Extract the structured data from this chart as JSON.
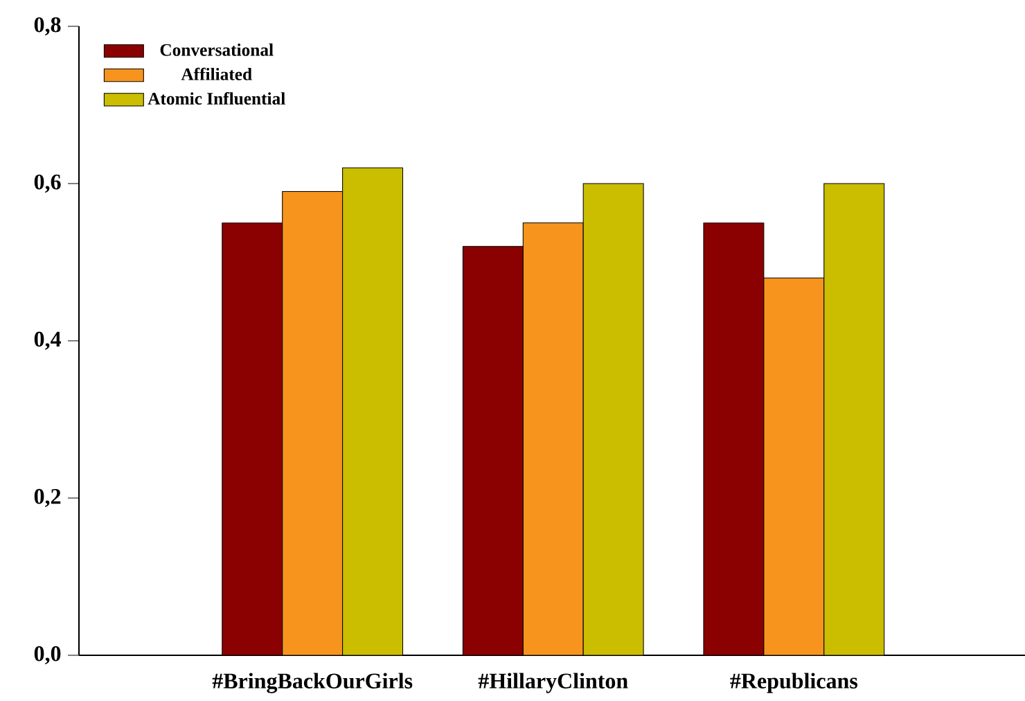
{
  "chart_data": {
    "type": "bar",
    "categories": [
      "#BringBackOurGirls",
      "#HillaryClinton",
      "#Republicans"
    ],
    "series": [
      {
        "name": "Conversational",
        "color": "#8b0000",
        "values": [
          0.55,
          0.52,
          0.55
        ]
      },
      {
        "name": "Affiliated",
        "color": "#f7941d",
        "values": [
          0.59,
          0.55,
          0.48
        ]
      },
      {
        "name": "Atomic Influential",
        "color": "#cbbd00",
        "values": [
          0.62,
          0.6,
          0.6
        ]
      }
    ],
    "ylim": [
      0,
      0.8
    ],
    "yticks": [
      {
        "value": 0,
        "label": "0,0"
      },
      {
        "value": 0.2,
        "label": "0,2"
      },
      {
        "value": 0.4,
        "label": "0,4"
      },
      {
        "value": 0.6,
        "label": "0,6"
      },
      {
        "value": 0.8,
        "label": "0,8"
      }
    ],
    "grid": false,
    "legend": "top left"
  }
}
